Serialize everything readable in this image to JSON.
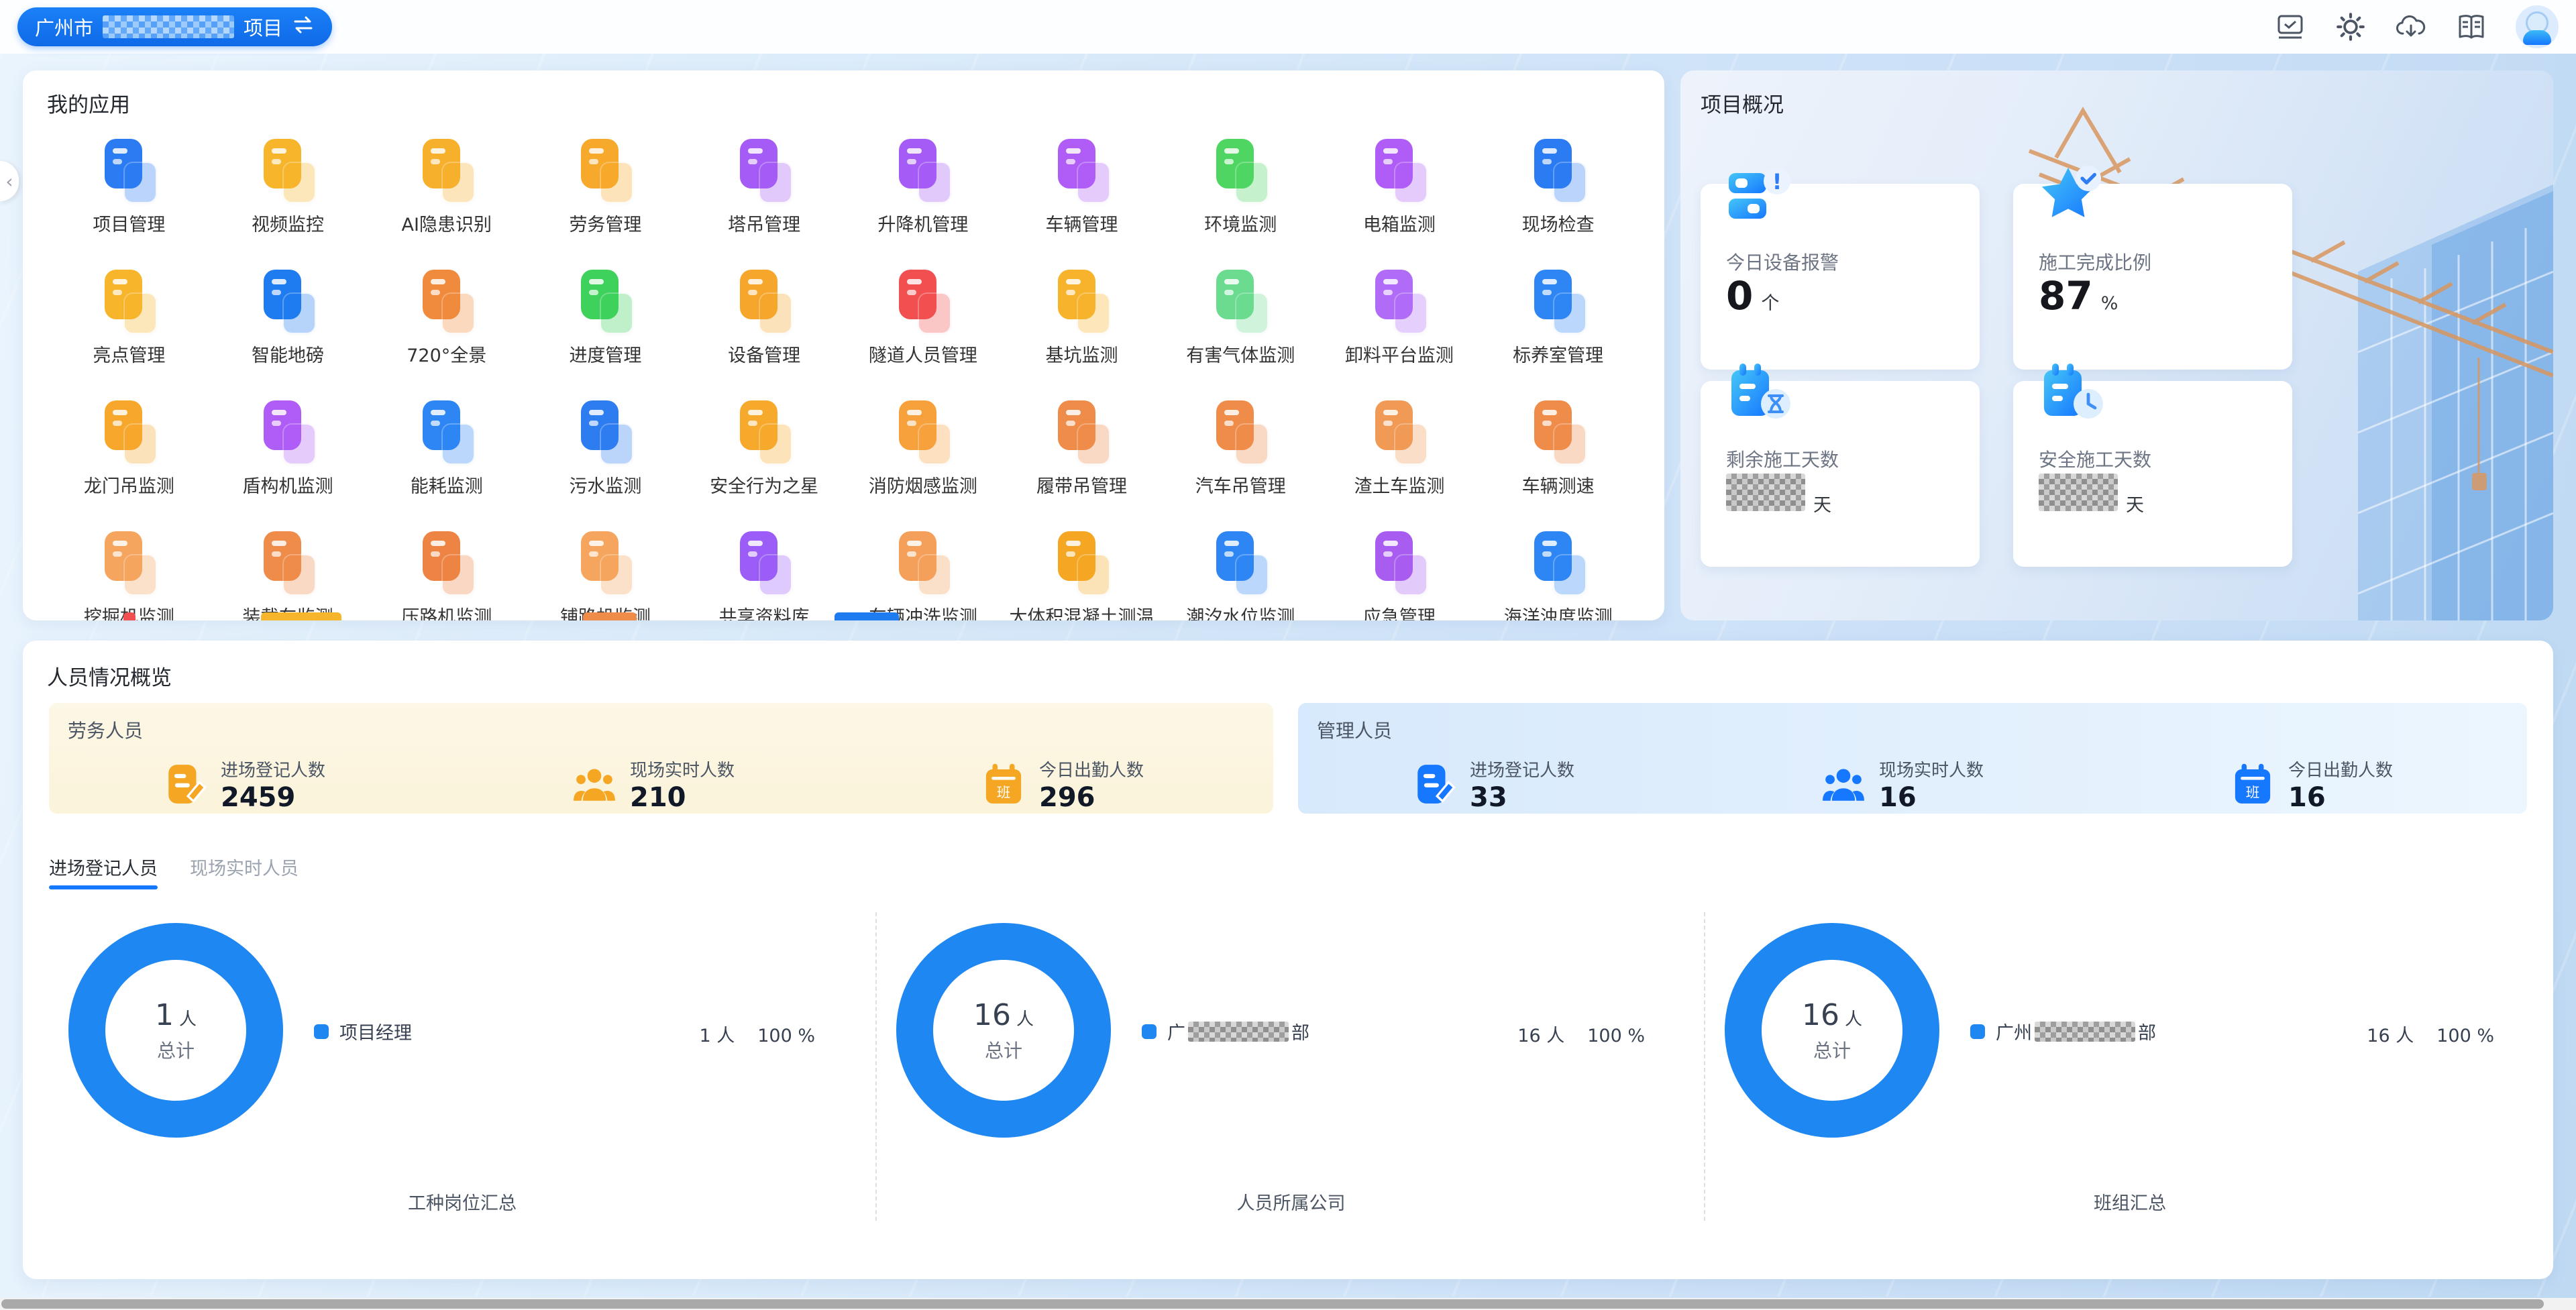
{
  "topbar": {
    "project_pill": {
      "prefix": "广州市",
      "suffix": "项目",
      "redacted": true
    },
    "icons": [
      "message-icon",
      "settings-icon",
      "cloud-download-icon",
      "handbook-icon",
      "avatar"
    ]
  },
  "apps_panel": {
    "title": "我的应用",
    "apps": [
      {
        "label": "项目管理",
        "color": "#2b7bf3"
      },
      {
        "label": "视频监控",
        "color": "#f7b52c"
      },
      {
        "label": "AI隐患识别",
        "color": "#f7b02c"
      },
      {
        "label": "劳务管理",
        "color": "#f7a92c"
      },
      {
        "label": "塔吊管理",
        "color": "#a55bf5"
      },
      {
        "label": "升降机管理",
        "color": "#a55bf5"
      },
      {
        "label": "车辆管理",
        "color": "#b05cf7"
      },
      {
        "label": "环境监测",
        "color": "#4fd662"
      },
      {
        "label": "电箱监测",
        "color": "#b05cf7"
      },
      {
        "label": "现场检查",
        "color": "#2b7bf3"
      },
      {
        "label": "亮点管理",
        "color": "#f7b52c"
      },
      {
        "label": "智能地磅",
        "color": "#1f7bf0"
      },
      {
        "label": "720°全景",
        "color": "#f08a3c"
      },
      {
        "label": "进度管理",
        "color": "#3ed25c"
      },
      {
        "label": "设备管理",
        "color": "#f7a62c"
      },
      {
        "label": "隧道人员管理",
        "color": "#f25050"
      },
      {
        "label": "基坑监测",
        "color": "#f7b32c"
      },
      {
        "label": "有害气体监测",
        "color": "#6bdb90"
      },
      {
        "label": "卸料平台监测",
        "color": "#b06cf7"
      },
      {
        "label": "标养室管理",
        "color": "#2e86f5"
      },
      {
        "label": "龙门吊监测",
        "color": "#f7a82c"
      },
      {
        "label": "盾构机监测",
        "color": "#b05cf7"
      },
      {
        "label": "能耗监测",
        "color": "#2e86f5"
      },
      {
        "label": "污水监测",
        "color": "#2e7df0"
      },
      {
        "label": "安全行为之星",
        "color": "#f7a92c"
      },
      {
        "label": "消防烟感监测",
        "color": "#f7a13c"
      },
      {
        "label": "履带吊管理",
        "color": "#f08c4a"
      },
      {
        "label": "汽车吊管理",
        "color": "#f08c4a"
      },
      {
        "label": "渣土车监测",
        "color": "#f09a55"
      },
      {
        "label": "车辆测速",
        "color": "#f08c4a"
      },
      {
        "label": "挖掘机监测",
        "color": "#f5a55e"
      },
      {
        "label": "装载车监测",
        "color": "#f08c4a"
      },
      {
        "label": "压路机监测",
        "color": "#ed8443"
      },
      {
        "label": "铺路机监测",
        "color": "#f5a55e"
      },
      {
        "label": "共享资料库",
        "color": "#9b5cf7"
      },
      {
        "label": "车辆冲洗监测",
        "color": "#f5a05a"
      },
      {
        "label": "大体积混凝土测温",
        "color": "#f5a623"
      },
      {
        "label": "潮汐水位监测",
        "color": "#2e86f5"
      },
      {
        "label": "应急管理",
        "color": "#a85df0"
      },
      {
        "label": "海洋浊度监测",
        "color": "#2e86f5"
      }
    ]
  },
  "overview_panel": {
    "title": "项目概况",
    "cards": [
      {
        "label": "今日设备报警",
        "value": "0",
        "unit": "个",
        "redacted": false,
        "icon": "device-alarm-icon"
      },
      {
        "label": "施工完成比例",
        "value": "87",
        "unit": "%",
        "redacted": false,
        "icon": "star-check-icon"
      },
      {
        "label": "剩余施工天数",
        "value": null,
        "unit": "天",
        "redacted": true,
        "icon": "calendar-hourglass-icon"
      },
      {
        "label": "安全施工天数",
        "value": null,
        "unit": "天",
        "redacted": true,
        "icon": "calendar-clock-icon"
      }
    ]
  },
  "personnel_panel": {
    "title": "人员情况概览",
    "labor": {
      "title": "劳务人员",
      "accent": "#f5a623",
      "stats": [
        {
          "label": "进场登记人数",
          "value": "2459",
          "icon": "register-icon"
        },
        {
          "label": "现场实时人数",
          "value": "210",
          "icon": "people-icon"
        },
        {
          "label": "今日出勤人数",
          "value": "296",
          "icon": "attendance-calendar-icon"
        }
      ]
    },
    "management": {
      "title": "管理人员",
      "accent": "#1677ff",
      "stats": [
        {
          "label": "进场登记人数",
          "value": "33",
          "icon": "register-icon"
        },
        {
          "label": "现场实时人数",
          "value": "16",
          "icon": "people-icon"
        },
        {
          "label": "今日出勤人数",
          "value": "16",
          "icon": "attendance-calendar-icon"
        }
      ]
    },
    "tabs": [
      {
        "label": "进场登记人员",
        "active": true
      },
      {
        "label": "现场实时人员",
        "active": false
      }
    ],
    "charts": [
      {
        "total": "1",
        "total_unit": "人",
        "total_label": "总计",
        "legend_prefix": "项目经理",
        "legend_suffix": "",
        "legend_redacted": false,
        "count": "1 人",
        "percent": "100 %",
        "footer": "工种岗位汇总"
      },
      {
        "total": "16",
        "total_unit": "人",
        "total_label": "总计",
        "legend_prefix": "广",
        "legend_suffix": "部",
        "legend_redacted": true,
        "count": "16 人",
        "percent": "100 %",
        "footer": "人员所属公司"
      },
      {
        "total": "16",
        "total_unit": "人",
        "total_label": "总计",
        "legend_prefix": "广州",
        "legend_suffix": "部",
        "legend_redacted": true,
        "count": "16 人",
        "percent": "100 %",
        "footer": "班组汇总"
      }
    ]
  },
  "chart_data": [
    {
      "type": "pie",
      "donut": true,
      "title": "工种岗位汇总",
      "labels": [
        "项目经理"
      ],
      "values": [
        1
      ],
      "percents": [
        100
      ],
      "unit": "人",
      "total": 1,
      "center_text": "1 人 总计",
      "slice_color": "#1f87f2",
      "legend_position": "right"
    },
    {
      "type": "pie",
      "donut": true,
      "title": "人员所属公司",
      "labels": [
        "广▇▇▇▇▇部 (redacted)"
      ],
      "values": [
        16
      ],
      "percents": [
        100
      ],
      "unit": "人",
      "total": 16,
      "center_text": "16 人 总计",
      "slice_color": "#1f87f2",
      "legend_position": "right"
    },
    {
      "type": "pie",
      "donut": true,
      "title": "班组汇总",
      "labels": [
        "广州▇▇▇▇部 (redacted)"
      ],
      "values": [
        16
      ],
      "percents": [
        100
      ],
      "unit": "人",
      "total": 16,
      "center_text": "16 人 总计",
      "slice_color": "#1f87f2",
      "legend_position": "right"
    }
  ],
  "colors": {
    "accent": "#1677ff",
    "donut": "#1f87f2",
    "labor_accent": "#f5a623",
    "labor_bg": "#fcf6e2",
    "mgmt_bg": "#dcedfc"
  }
}
